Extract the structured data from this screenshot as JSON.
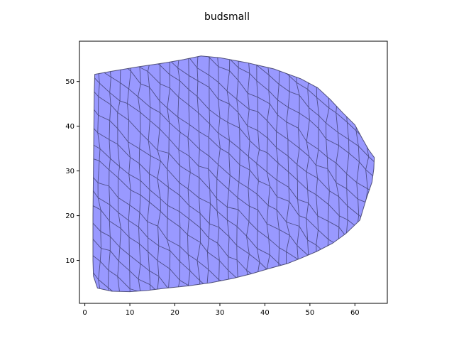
{
  "chart_data": {
    "type": "mesh",
    "title": "budsmall",
    "xlabel": "",
    "ylabel": "",
    "xlim": [
      -1.2,
      67.2
    ],
    "ylim": [
      0.4,
      59.0
    ],
    "xticks": [
      0,
      10,
      20,
      30,
      40,
      50,
      60
    ],
    "yticks": [
      10,
      20,
      30,
      40,
      50
    ],
    "fill_color": "#9999ff",
    "edge_color": "#33335c",
    "outline": [
      [
        2.2,
        51.6
      ],
      [
        6.0,
        52.3
      ],
      [
        12.0,
        53.3
      ],
      [
        18.0,
        54.2
      ],
      [
        22.0,
        54.9
      ],
      [
        25.8,
        55.7
      ],
      [
        30.0,
        55.3
      ],
      [
        36.0,
        54.2
      ],
      [
        42.0,
        52.8
      ],
      [
        48.0,
        50.6
      ],
      [
        51.7,
        48.6
      ],
      [
        54.5,
        46.0
      ],
      [
        57.3,
        43.0
      ],
      [
        60.0,
        40.3
      ],
      [
        61.5,
        37.5
      ],
      [
        63.0,
        34.8
      ],
      [
        64.3,
        33.0
      ],
      [
        64.2,
        30.5
      ],
      [
        63.8,
        27.5
      ],
      [
        62.6,
        24.0
      ],
      [
        61.1,
        19.0
      ],
      [
        58.0,
        16.0
      ],
      [
        55.0,
        13.8
      ],
      [
        51.5,
        12.0
      ],
      [
        48.0,
        10.5
      ],
      [
        45.0,
        9.3
      ],
      [
        41.0,
        8.2
      ],
      [
        37.0,
        7.0
      ],
      [
        33.0,
        6.0
      ],
      [
        28.0,
        5.0
      ],
      [
        23.0,
        4.3
      ],
      [
        18.0,
        3.8
      ],
      [
        14.0,
        3.3
      ],
      [
        10.0,
        3.0
      ],
      [
        6.0,
        3.1
      ],
      [
        2.8,
        3.8
      ],
      [
        1.9,
        6.5
      ],
      [
        1.8,
        10.0
      ],
      [
        1.8,
        20.0
      ],
      [
        1.9,
        30.0
      ],
      [
        2.0,
        40.0
      ],
      [
        2.1,
        48.0
      ]
    ]
  }
}
